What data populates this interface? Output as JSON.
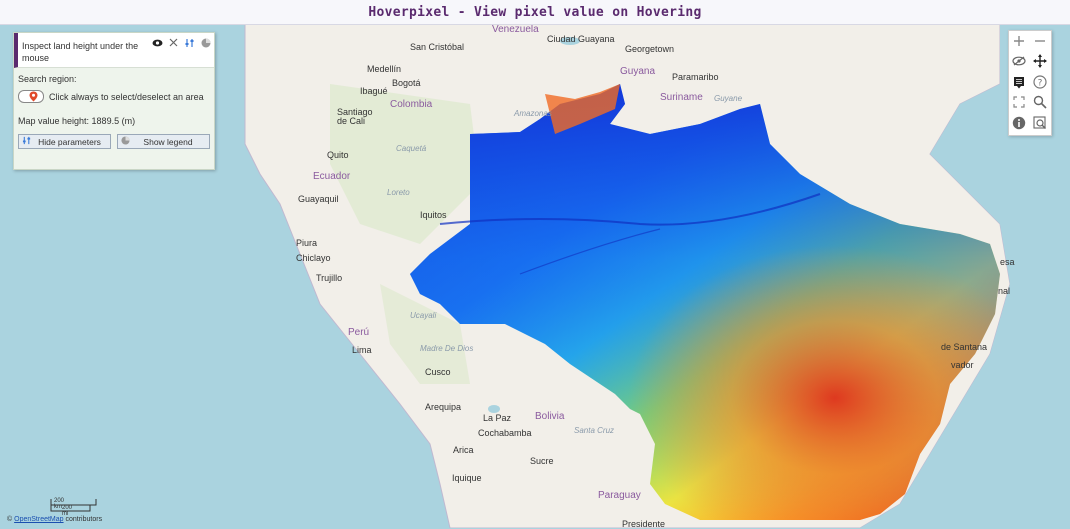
{
  "title": "Hoverpixel - View pixel value on Hovering",
  "panel": {
    "title": "Inspect land height under the mouse",
    "search_label": "Search region:",
    "toggle_label": "Click always to select/deselect an area",
    "value_text": "Map value height: 1889.5 (m)",
    "hide_params_label": "Hide parameters",
    "show_legend_label": "Show legend"
  },
  "attribution": {
    "prefix": "©",
    "link": "OpenStreetMap",
    "suffix": "contributors"
  },
  "scale": {
    "km": "200 km",
    "mi": "200 mi"
  },
  "map_labels": {
    "venezuela": "Venezuela",
    "san_cristobal": "San Cristóbal",
    "ciudad_guayana": "Ciudad Guayana",
    "georgetown": "Georgetown",
    "medellin": "Medellín",
    "bogota": "Bogotá",
    "guyana": "Guyana",
    "paramaribo": "Paramaribo",
    "ibague": "Ibagué",
    "colombia": "Colombia",
    "suriname": "Suriname",
    "guyane": "Guyane",
    "santiago_de_cali": "Santiago\nde Cali",
    "amazonas": "Amazonas",
    "quito": "Quito",
    "caqueta": "Caquetá",
    "ecuador": "Ecuador",
    "guayaquil": "Guayaquil",
    "iquitos": "Iquitos",
    "loreto": "Loreto",
    "piura": "Piura",
    "chiclayo": "Chiclayo",
    "trujillo": "Trujillo",
    "ucayali": "Ucayali",
    "peru": "Perú",
    "lima": "Lima",
    "madre_de_dios": "Madre De Dios",
    "cusco": "Cusco",
    "arequipa": "Arequipa",
    "la_paz": "La Paz",
    "bolivia": "Bolivia",
    "cochabamba": "Cochabamba",
    "santa_cruz": "Santa Cruz",
    "sucre": "Sucre",
    "arica": "Arica",
    "iquique": "Iquique",
    "paraguay": "Paraguay",
    "presidente": "Presidente",
    "fortaleza": "esa",
    "salvador": "vador",
    "santana": "de Santana",
    "nal": "nal"
  }
}
